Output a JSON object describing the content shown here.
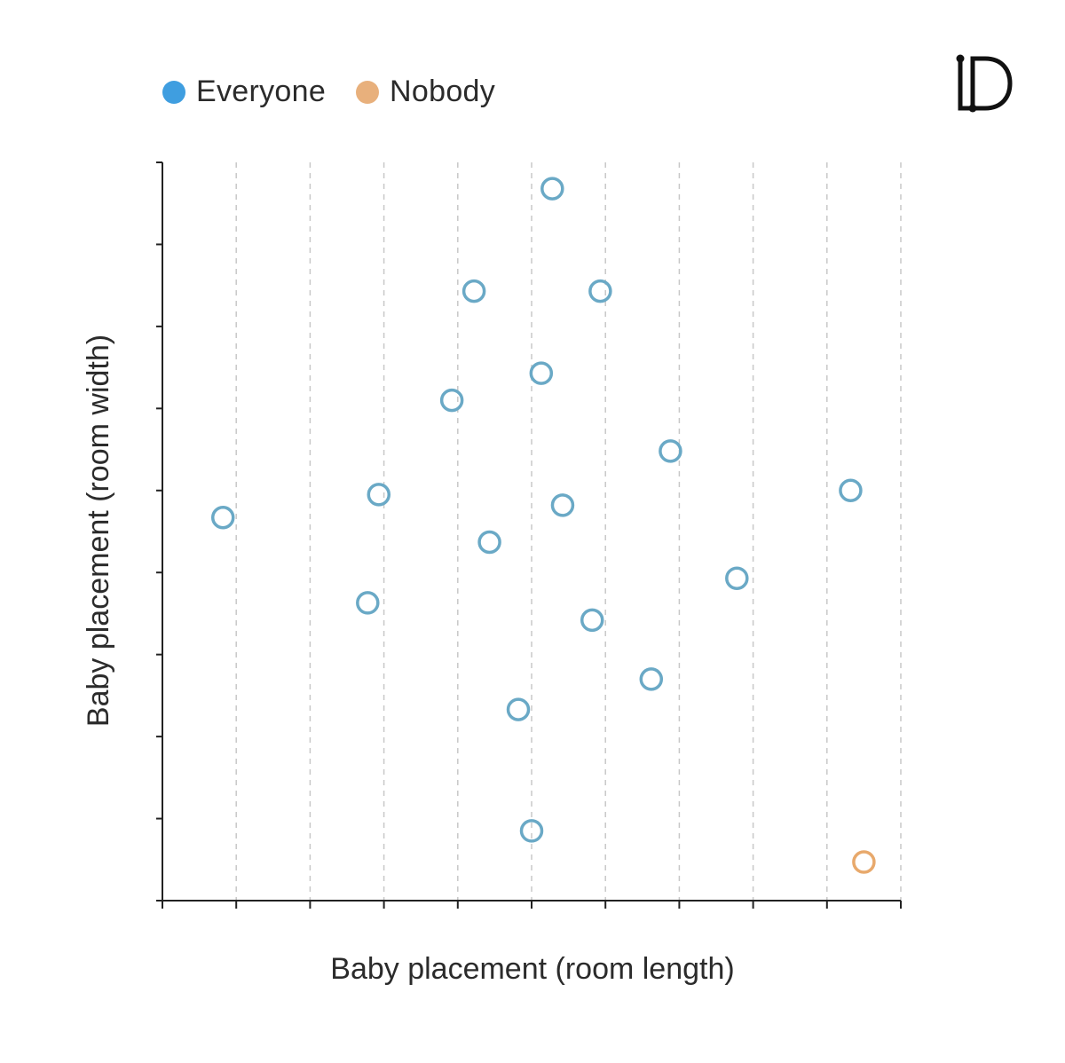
{
  "legend": {
    "items": [
      {
        "label": "Everyone",
        "color": "#3f9ee0"
      },
      {
        "label": "Nobody",
        "color": "#e8b07c"
      }
    ]
  },
  "logo": {
    "icon": "letter-d-logo-icon"
  },
  "chart_data": {
    "type": "scatter",
    "xlabel": "Baby placement (room length)",
    "ylabel": "Baby placement (room width)",
    "xlim": [
      0,
      10
    ],
    "ylim": [
      0,
      9
    ],
    "grid": {
      "x": true,
      "y": false
    },
    "x_tick_labels": false,
    "y_tick_labels": false,
    "legend_position": "top-left",
    "series": [
      {
        "name": "Everyone",
        "color": "#6aa9c6",
        "legend_color": "#3f9ee0",
        "marker": "hollow-circle",
        "points": [
          {
            "x": 5.28,
            "y": 8.68
          },
          {
            "x": 4.22,
            "y": 7.43
          },
          {
            "x": 5.93,
            "y": 7.43
          },
          {
            "x": 5.13,
            "y": 6.43
          },
          {
            "x": 3.92,
            "y": 6.1
          },
          {
            "x": 6.88,
            "y": 5.48
          },
          {
            "x": 9.32,
            "y": 5.0
          },
          {
            "x": 0.82,
            "y": 4.67
          },
          {
            "x": 2.93,
            "y": 4.95
          },
          {
            "x": 5.42,
            "y": 4.82
          },
          {
            "x": 4.43,
            "y": 4.37
          },
          {
            "x": 7.78,
            "y": 3.93
          },
          {
            "x": 2.78,
            "y": 3.63
          },
          {
            "x": 5.82,
            "y": 3.42
          },
          {
            "x": 6.62,
            "y": 2.7
          },
          {
            "x": 4.82,
            "y": 2.33
          },
          {
            "x": 5.0,
            "y": 0.85
          }
        ]
      },
      {
        "name": "Nobody",
        "color": "#e8a96c",
        "legend_color": "#e8b07c",
        "marker": "hollow-circle",
        "points": [
          {
            "x": 9.5,
            "y": 0.47
          }
        ]
      }
    ]
  }
}
